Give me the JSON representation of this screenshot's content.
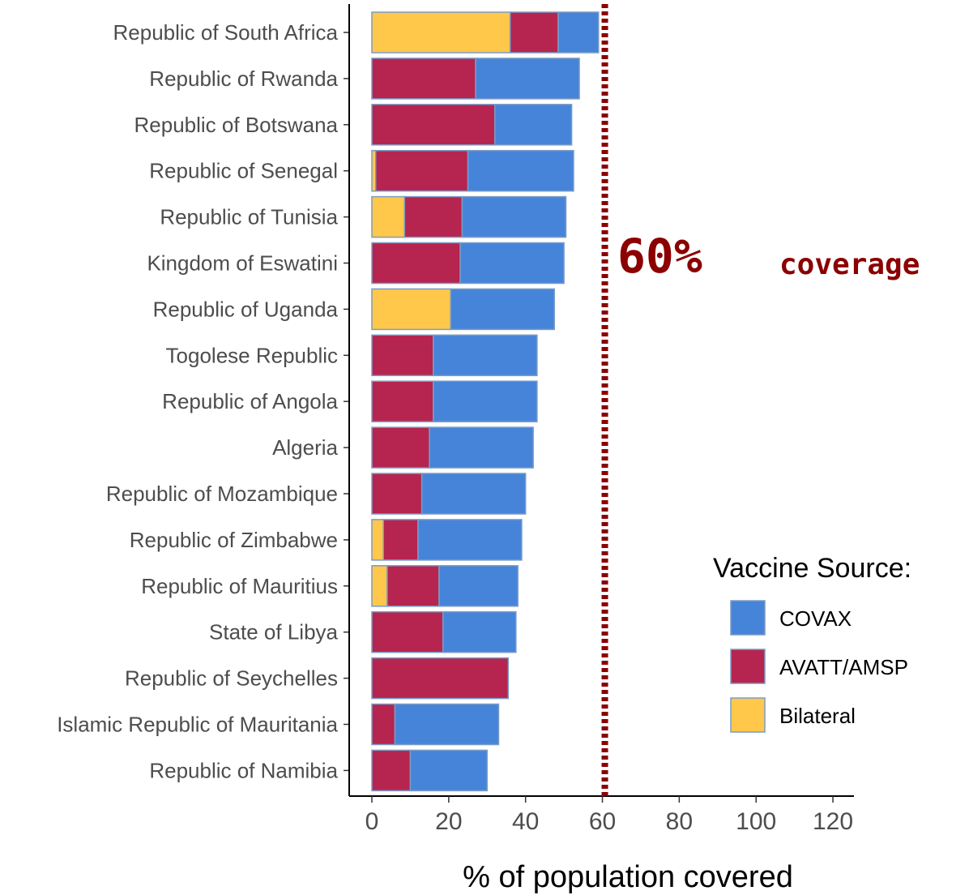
{
  "chart_data": {
    "type": "bar",
    "orientation": "horizontal",
    "stacked": true,
    "xlabel": "% of population covered",
    "ylabel": "",
    "xlim": [
      -6,
      125
    ],
    "x_ticks": [
      0,
      20,
      40,
      60,
      80,
      100,
      120
    ],
    "grid": false,
    "categories": [
      "Republic of South Africa",
      "Republic of Rwanda",
      "Republic of Botswana",
      "Republic of Senegal",
      "Republic of Tunisia",
      "Kingdom of Eswatini",
      "Republic of Uganda",
      "Togolese Republic",
      "Republic of Angola",
      "Algeria",
      "Republic of Mozambique",
      "Republic of Zimbabwe",
      "Republic of Mauritius",
      "State of Libya",
      "Republic of Seychelles",
      "Islamic Republic of Mauritania",
      "Republic of Namibia"
    ],
    "series": [
      {
        "name": "Bilateral",
        "color": "#ffc84a",
        "values": [
          36,
          0,
          0,
          1,
          8.5,
          0,
          20.5,
          0,
          0,
          0,
          0,
          3,
          4,
          0,
          0,
          0,
          0
        ]
      },
      {
        "name": "AVATT/AMSP",
        "color": "#b5254f",
        "values": [
          12.5,
          27,
          32,
          24,
          15,
          23,
          0,
          16,
          16,
          15,
          13,
          9,
          13.5,
          18.5,
          35.5,
          6,
          10
        ]
      },
      {
        "name": "COVAX",
        "color": "#4684d9",
        "values": [
          10.5,
          27,
          20,
          27.5,
          27,
          27,
          27,
          27,
          27,
          27,
          27,
          27,
          20.5,
          19,
          0,
          27,
          20
        ]
      }
    ],
    "stack_order": [
      "Bilateral",
      "AVATT/AMSP",
      "COVAX"
    ],
    "reference_line": {
      "x": 60,
      "color": "#8b0000",
      "style": "dotted",
      "label_value": "60%",
      "label_text": "coverage"
    },
    "legend": {
      "title": "Vaccine Source:",
      "position": "right",
      "entries": [
        {
          "label": "COVAX",
          "color": "#4684d9"
        },
        {
          "label": "AVATT/AMSP",
          "color": "#b5254f"
        },
        {
          "label": "Bilateral",
          "color": "#ffc84a"
        }
      ]
    }
  }
}
